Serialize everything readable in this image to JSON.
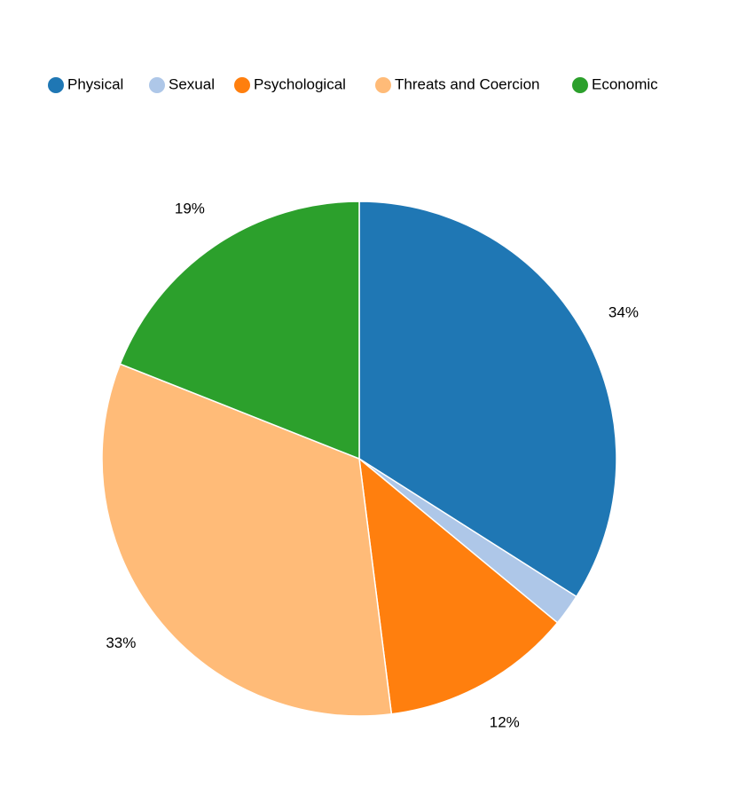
{
  "chart_data": {
    "type": "pie",
    "categories": [
      "Physical",
      "Sexual",
      "Psychological",
      "Threats and Coercion",
      "Economic"
    ],
    "values": [
      34,
      2,
      12,
      33,
      19
    ],
    "value_labels": [
      "34%",
      null,
      "12%",
      "33%",
      "19%"
    ],
    "colors": [
      "#1f77b4",
      "#aec7e8",
      "#ff7f0e",
      "#ffbb78",
      "#2ca02c"
    ],
    "legend": "top"
  }
}
